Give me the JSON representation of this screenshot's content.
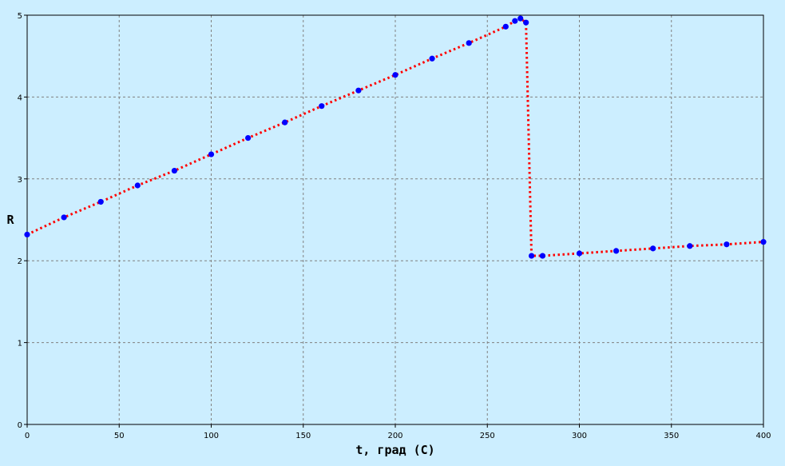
{
  "chart_data": {
    "type": "line",
    "xlabel": "t, град (С)",
    "ylabel": "R",
    "xlim": [
      0,
      400
    ],
    "ylim": [
      0,
      5
    ],
    "xticks": [
      0,
      50,
      100,
      150,
      200,
      250,
      300,
      350,
      400
    ],
    "yticks": [
      0,
      1,
      2,
      3,
      4,
      5
    ],
    "grid": true,
    "colors": {
      "background": "#cceeff",
      "plot_area": "#cceeff",
      "line": "#ff0000",
      "marker": "#0000ff",
      "grid": "#808080"
    },
    "series": [
      {
        "line_style": "dotted",
        "x": [
          0,
          20,
          40,
          60,
          80,
          100,
          120,
          140,
          160,
          180,
          200,
          220,
          240,
          260,
          265,
          268,
          271,
          274,
          280,
          300,
          320,
          340,
          360,
          380,
          400
        ],
        "y": [
          2.32,
          2.53,
          2.72,
          2.92,
          3.1,
          3.3,
          3.5,
          3.69,
          3.89,
          4.08,
          4.27,
          4.47,
          4.66,
          4.86,
          4.93,
          4.96,
          4.91,
          2.06,
          2.06,
          2.09,
          2.12,
          2.15,
          2.18,
          2.2,
          2.23
        ]
      }
    ]
  }
}
